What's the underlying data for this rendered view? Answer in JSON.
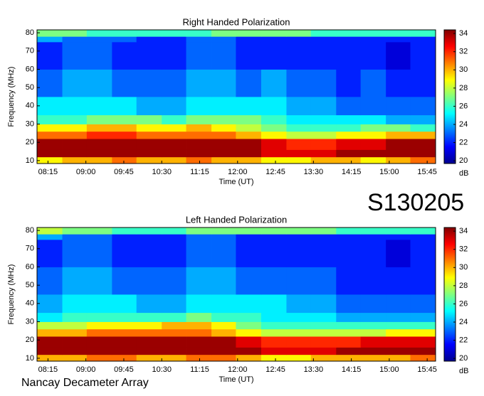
{
  "chart_data": [
    {
      "type": "heatmap",
      "title": "Right Handed Polarization",
      "x_label": "Time (UT)",
      "y_label": "Frequency (MHz)",
      "colorbar_label": "dB",
      "xlim": [
        482,
        955
      ],
      "ylim": [
        8.4,
        81.6
      ],
      "clim": [
        19.7,
        34.4
      ],
      "xticks": [
        {
          "value": 495,
          "label": "08:15"
        },
        {
          "value": 540,
          "label": "09:00"
        },
        {
          "value": 585,
          "label": "09:45"
        },
        {
          "value": 630,
          "label": "10:30"
        },
        {
          "value": 675,
          "label": "11:15"
        },
        {
          "value": 720,
          "label": "12:00"
        },
        {
          "value": 765,
          "label": "12:45"
        },
        {
          "value": 810,
          "label": "13:30"
        },
        {
          "value": 855,
          "label": "14:15"
        },
        {
          "value": 900,
          "label": "15:00"
        },
        {
          "value": 945,
          "label": "15:45"
        }
      ],
      "yticks": [
        10,
        20,
        30,
        40,
        50,
        60,
        70,
        80
      ],
      "cticks": [
        20,
        22,
        24,
        26,
        28,
        30,
        32,
        34
      ],
      "xbins": [
        482,
        512,
        541,
        571,
        600,
        630,
        659,
        689,
        718,
        748,
        778,
        807,
        837,
        866,
        896,
        925,
        955
      ],
      "ybins": [
        8.4,
        12,
        16,
        22,
        26,
        30,
        35,
        45,
        60,
        75,
        78,
        81.6
      ],
      "z": [
        [
          29,
          30,
          30,
          31,
          30,
          30,
          31,
          30,
          30,
          29,
          29,
          30,
          30,
          29,
          30,
          31
        ],
        [
          34,
          34,
          34,
          34,
          34,
          34,
          34,
          34,
          34,
          33,
          33,
          33,
          34,
          34,
          34,
          34
        ],
        [
          34,
          34,
          34,
          34,
          34,
          34,
          34,
          34,
          34,
          33,
          32,
          32,
          33,
          33,
          34,
          34
        ],
        [
          31,
          31,
          32,
          32,
          31,
          31,
          31,
          31,
          30,
          29,
          28,
          28,
          29,
          29,
          30,
          30
        ],
        [
          29,
          29,
          30,
          30,
          29,
          29,
          30,
          29,
          28,
          27,
          26,
          26,
          26,
          27,
          27,
          26
        ],
        [
          26,
          26,
          27,
          27,
          27,
          26,
          27,
          27,
          27,
          26,
          25,
          25,
          25,
          25,
          24,
          24
        ],
        [
          25,
          25,
          25,
          25,
          24,
          24,
          25,
          25,
          25,
          25,
          24,
          24,
          23,
          23,
          23,
          23
        ],
        [
          23,
          24,
          24,
          23,
          23,
          23,
          24,
          24,
          23,
          24,
          23,
          23,
          22,
          23,
          22,
          22
        ],
        [
          22,
          23,
          23,
          22,
          22,
          22,
          23,
          23,
          22,
          22,
          22,
          22,
          22,
          22,
          21,
          22
        ],
        [
          24,
          23,
          23,
          23,
          22,
          22,
          23,
          23,
          22,
          22,
          22,
          22,
          22,
          22,
          22,
          22
        ],
        [
          27,
          27,
          26,
          26,
          26,
          26,
          26,
          27,
          27,
          27,
          27,
          26,
          26,
          26,
          26,
          26
        ]
      ]
    },
    {
      "type": "heatmap",
      "title": "Left Handed Polarization",
      "x_label": "Time (UT)",
      "y_label": "Frequency (MHz)",
      "colorbar_label": "dB",
      "xlim": [
        482,
        955
      ],
      "ylim": [
        8.4,
        81.6
      ],
      "clim": [
        19.7,
        34.4
      ],
      "xticks": [
        {
          "value": 495,
          "label": "08:15"
        },
        {
          "value": 540,
          "label": "09:00"
        },
        {
          "value": 585,
          "label": "09:45"
        },
        {
          "value": 630,
          "label": "10:30"
        },
        {
          "value": 675,
          "label": "11:15"
        },
        {
          "value": 720,
          "label": "12:00"
        },
        {
          "value": 765,
          "label": "12:45"
        },
        {
          "value": 810,
          "label": "13:30"
        },
        {
          "value": 855,
          "label": "14:15"
        },
        {
          "value": 900,
          "label": "15:00"
        },
        {
          "value": 945,
          "label": "15:45"
        }
      ],
      "yticks": [
        10,
        20,
        30,
        40,
        50,
        60,
        70,
        80
      ],
      "cticks": [
        20,
        22,
        24,
        26,
        28,
        30,
        32,
        34
      ],
      "xbins": [
        482,
        512,
        541,
        571,
        600,
        630,
        659,
        689,
        718,
        748,
        778,
        807,
        837,
        866,
        896,
        925,
        955
      ],
      "ybins": [
        8.4,
        12,
        16,
        22,
        26,
        30,
        35,
        45,
        60,
        75,
        78,
        81.6
      ],
      "z": [
        [
          30,
          30,
          31,
          31,
          30,
          30,
          31,
          31,
          30,
          29,
          29,
          30,
          30,
          30,
          30,
          31
        ],
        [
          34,
          34,
          34,
          34,
          34,
          34,
          34,
          34,
          34,
          33,
          33,
          33,
          34,
          34,
          34,
          34
        ],
        [
          34,
          34,
          34,
          34,
          34,
          34,
          34,
          34,
          33,
          32,
          32,
          32,
          32,
          33,
          33,
          33
        ],
        [
          30,
          30,
          31,
          31,
          31,
          31,
          31,
          30,
          29,
          28,
          28,
          28,
          28,
          28,
          29,
          29
        ],
        [
          28,
          28,
          29,
          29,
          29,
          30,
          30,
          29,
          27,
          26,
          26,
          26,
          26,
          26,
          26,
          26
        ],
        [
          25,
          26,
          26,
          26,
          26,
          26,
          27,
          26,
          26,
          25,
          25,
          25,
          24,
          24,
          24,
          24
        ],
        [
          24,
          25,
          25,
          25,
          24,
          24,
          25,
          25,
          25,
          25,
          24,
          24,
          23,
          23,
          23,
          23
        ],
        [
          23,
          24,
          24,
          23,
          23,
          23,
          24,
          24,
          23,
          23,
          23,
          23,
          22,
          22,
          22,
          22
        ],
        [
          22,
          23,
          23,
          22,
          22,
          22,
          23,
          23,
          22,
          22,
          22,
          22,
          22,
          22,
          21,
          22
        ],
        [
          24,
          23,
          23,
          22,
          22,
          22,
          23,
          23,
          22,
          22,
          22,
          22,
          22,
          22,
          22,
          22
        ],
        [
          28,
          27,
          27,
          26,
          26,
          26,
          27,
          27,
          27,
          27,
          27,
          27,
          26,
          26,
          26,
          26
        ]
      ]
    }
  ],
  "annotations": [
    "S130205",
    "Nancay Decameter Array"
  ]
}
